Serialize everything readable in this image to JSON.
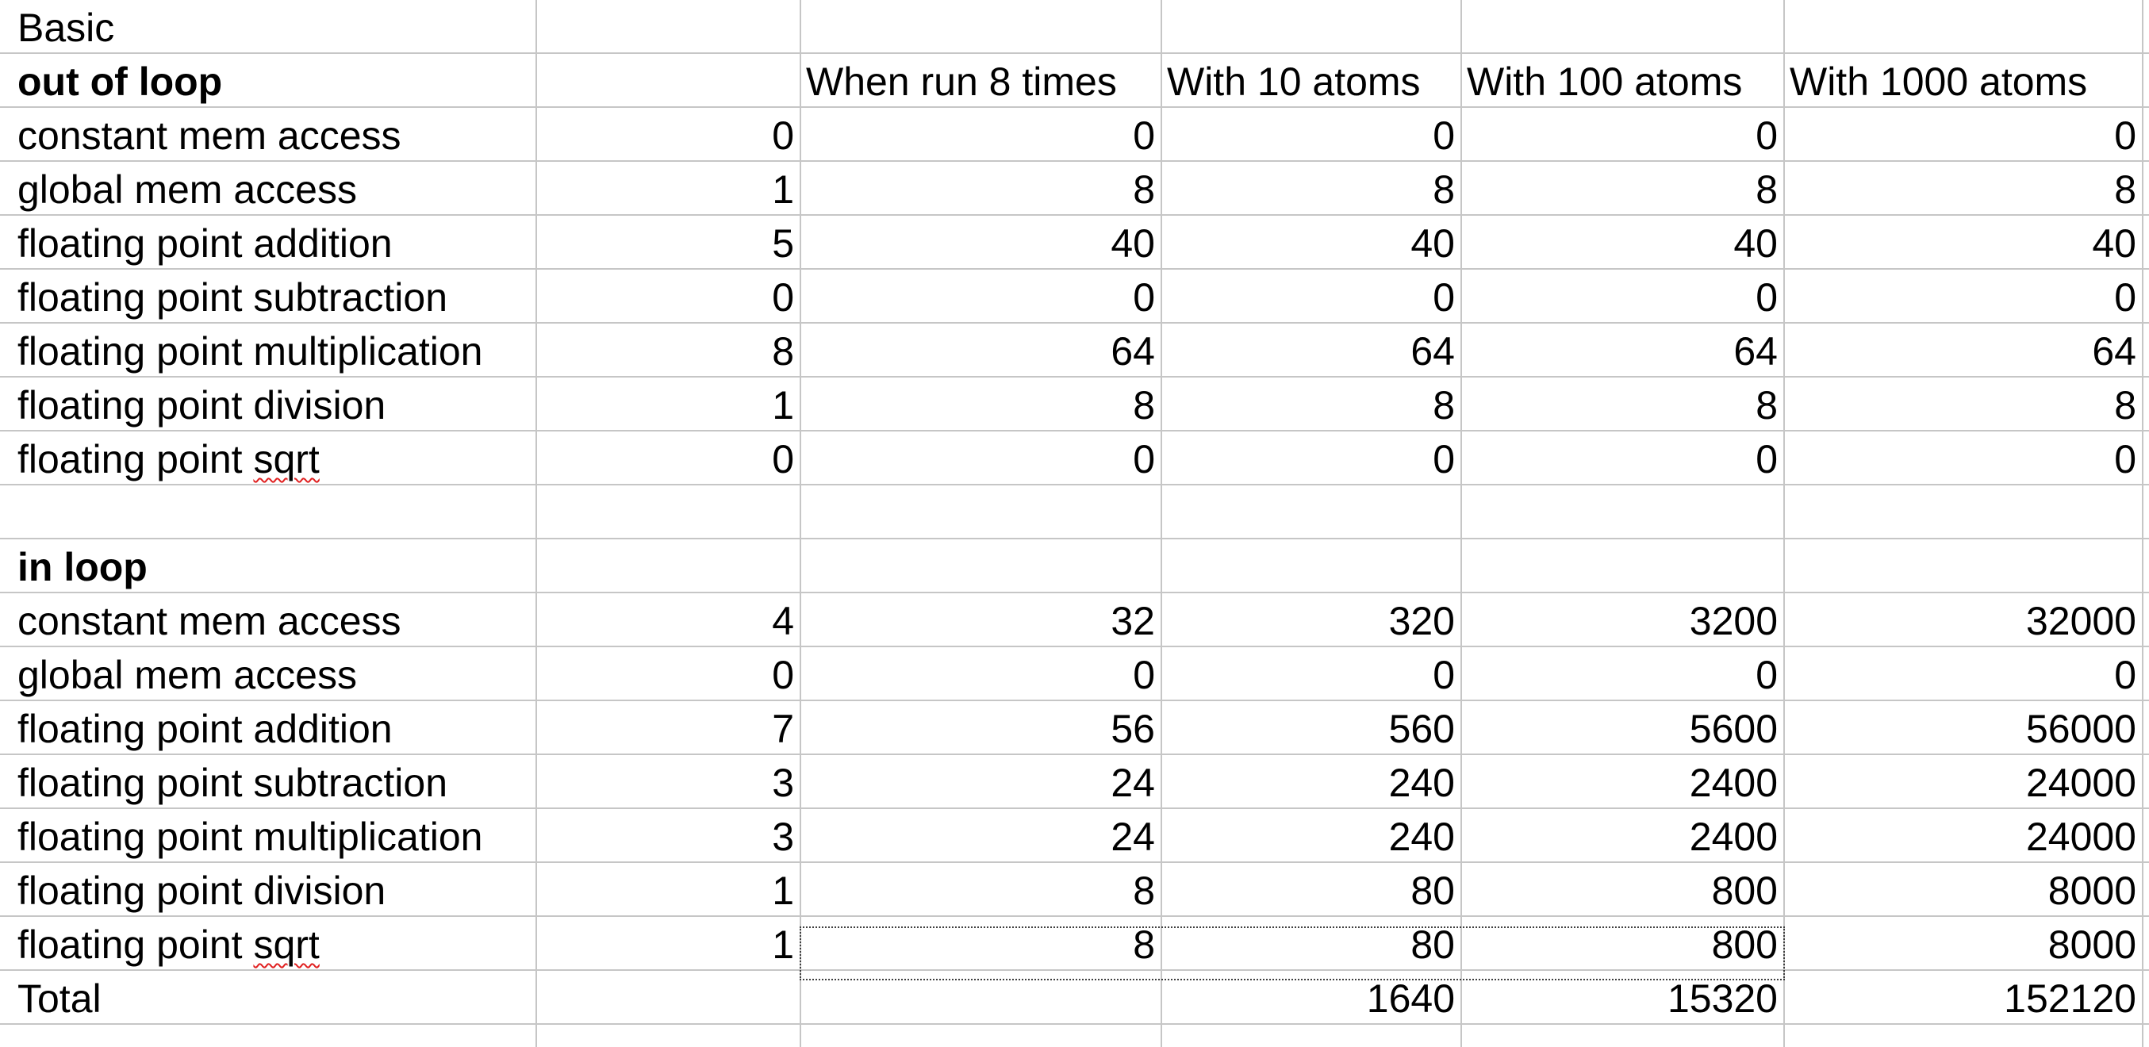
{
  "sheet": {
    "title": "Basic",
    "column_headers": [
      "When run 8 times",
      "With 10 atoms",
      "With 100 atoms",
      "With 1000 atoms"
    ],
    "sections": [
      {
        "title": "out of loop",
        "rows": [
          {
            "label": "constant mem access",
            "values": [
              "0",
              "0",
              "0",
              "0",
              "0"
            ]
          },
          {
            "label": "global mem access",
            "values": [
              "1",
              "8",
              "8",
              "8",
              "8"
            ]
          },
          {
            "label": "floating point addition",
            "values": [
              "5",
              "40",
              "40",
              "40",
              "40"
            ]
          },
          {
            "label": "floating point subtraction",
            "values": [
              "0",
              "0",
              "0",
              "0",
              "0"
            ]
          },
          {
            "label": "floating point multiplication",
            "values": [
              "8",
              "64",
              "64",
              "64",
              "64"
            ]
          },
          {
            "label": "floating point division",
            "values": [
              "1",
              "8",
              "8",
              "8",
              "8"
            ]
          },
          {
            "label_prefix": "floating point ",
            "label_word": "sqrt",
            "values": [
              "0",
              "0",
              "0",
              "0",
              "0"
            ]
          }
        ]
      },
      {
        "title": "in loop",
        "rows": [
          {
            "label": "constant mem access",
            "values": [
              "4",
              "32",
              "320",
              "3200",
              "32000"
            ]
          },
          {
            "label": "global mem access",
            "values": [
              "0",
              "0",
              "0",
              "0",
              "0"
            ]
          },
          {
            "label": "floating point addition",
            "values": [
              "7",
              "56",
              "560",
              "5600",
              "56000"
            ]
          },
          {
            "label": "floating point subtraction",
            "values": [
              "3",
              "24",
              "240",
              "2400",
              "24000"
            ]
          },
          {
            "label": "floating point multiplication",
            "values": [
              "3",
              "24",
              "240",
              "2400",
              "24000"
            ]
          },
          {
            "label": "floating point division",
            "values": [
              "1",
              "8",
              "80",
              "800",
              "8000"
            ]
          },
          {
            "label_prefix": "floating point ",
            "label_word": "sqrt",
            "values": [
              "1",
              "8",
              "80",
              "800",
              "8000"
            ]
          }
        ]
      }
    ],
    "total": {
      "label": "Total",
      "values": [
        "1640",
        "15320",
        "152120"
      ]
    }
  }
}
